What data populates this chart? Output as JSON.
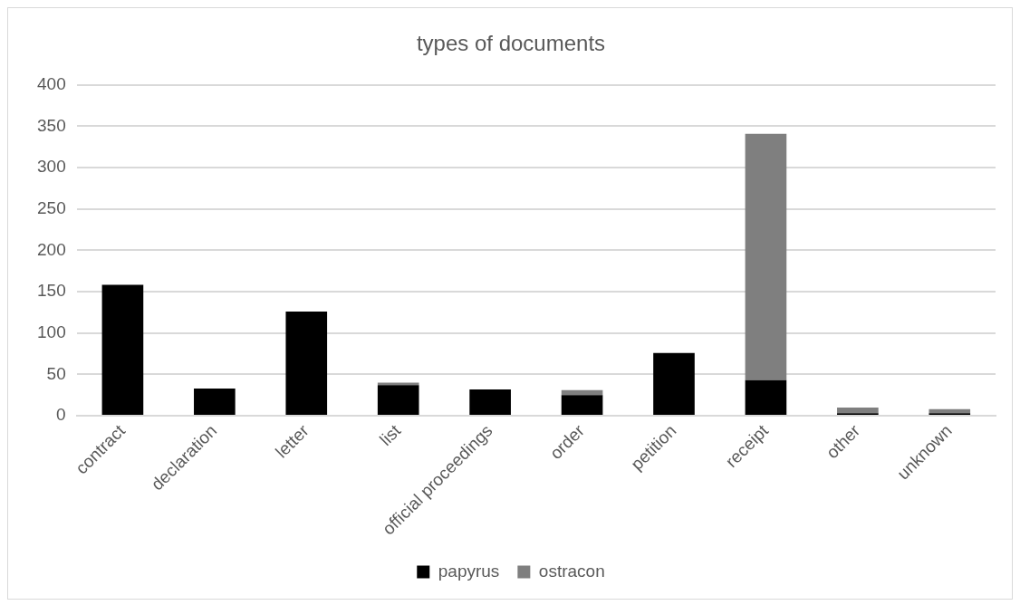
{
  "chart_data": {
    "type": "bar",
    "title": "types of documents",
    "stacked": true,
    "grid": "y",
    "legend": "bottom",
    "categories": [
      "contract",
      "declaration",
      "letter",
      "list",
      "official proceedings",
      "order",
      "petition",
      "receipt",
      "other",
      "unknown"
    ],
    "series": [
      {
        "name": "papyrus",
        "color": "#000000",
        "values": [
          158,
          33,
          126,
          37,
          32,
          25,
          76,
          43,
          3,
          3
        ]
      },
      {
        "name": "ostracon",
        "color": "#7f7f7f",
        "values": [
          1,
          0,
          0,
          3,
          0,
          6,
          0,
          298,
          7,
          5
        ]
      }
    ],
    "ylim": [
      0,
      400
    ],
    "yticks": [
      0,
      50,
      100,
      150,
      200,
      250,
      300,
      350,
      400
    ]
  }
}
